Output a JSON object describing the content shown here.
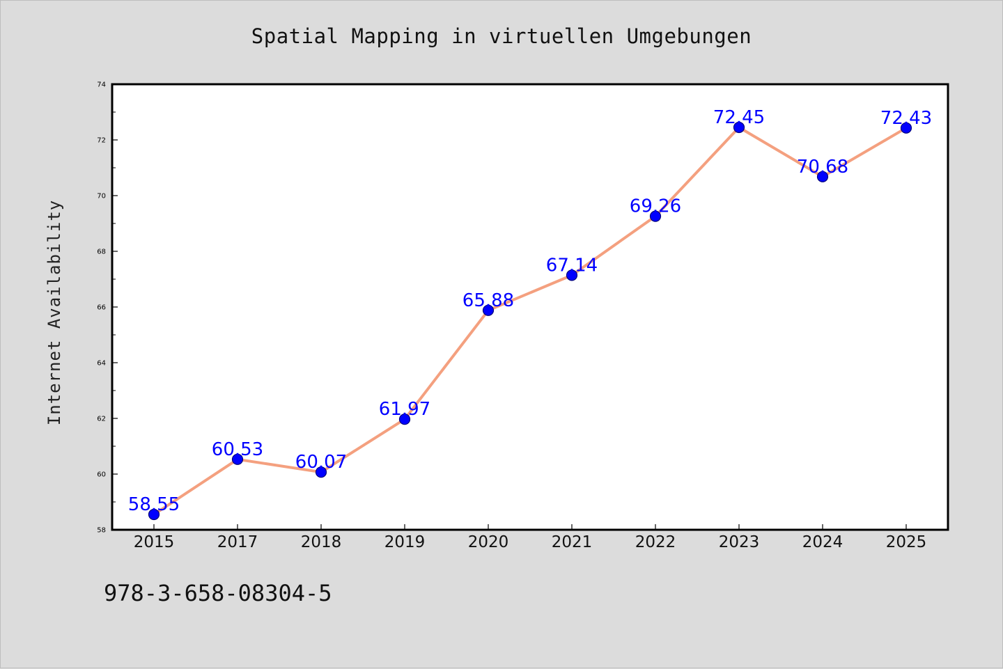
{
  "chart_data": {
    "type": "line",
    "title": "Spatial Mapping in virtuellen Umgebungen",
    "xlabel": "",
    "ylabel": "Internet Availability",
    "categories": [
      "2015",
      "2017",
      "2018",
      "2019",
      "2020",
      "2021",
      "2022",
      "2023",
      "2024",
      "2025"
    ],
    "series": [
      {
        "values": [
          58.55,
          60.53,
          60.07,
          61.97,
          65.88,
          67.14,
          69.26,
          72.45,
          70.68,
          72.43
        ]
      }
    ],
    "data_labels": [
      "58.55",
      "60.53",
      "60.07",
      "61.97",
      "65.88",
      "67.14",
      "69.26",
      "72.45",
      "70.68",
      "72.43"
    ],
    "ylim": [
      58,
      74
    ],
    "y_ticks": [
      58,
      60,
      62,
      64,
      66,
      68,
      70,
      72,
      74
    ],
    "y_tick_labels": [
      "58",
      "60",
      "62",
      "64",
      "66",
      "68",
      "70",
      "72",
      "74"
    ],
    "grid": false,
    "legend": "none",
    "colors": {
      "line": "#f4a07f",
      "marker": "#0000ff",
      "marker_edge": "#00007a",
      "data_label": "#0000ff",
      "plot_background": "#ffffff",
      "figure_background": "#dcdcdc"
    }
  },
  "footer": {
    "code": "978-3-658-08304-5"
  }
}
